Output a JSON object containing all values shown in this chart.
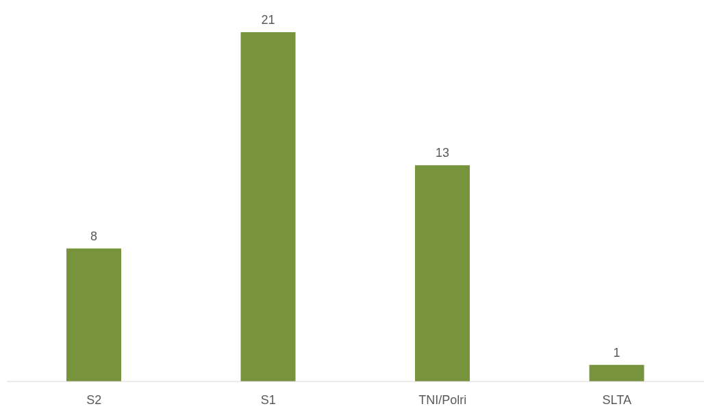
{
  "chart_data": {
    "type": "bar",
    "categories": [
      "S2",
      "S1",
      "TNI/Polri",
      "SLTA"
    ],
    "values": [
      8,
      21,
      13,
      1
    ],
    "color": "#77933c",
    "data_labels": true
  }
}
